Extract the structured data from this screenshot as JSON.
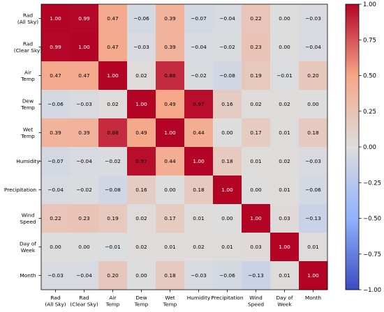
{
  "chart_data": {
    "type": "heatmap",
    "title": "",
    "xlabel": "",
    "ylabel": "",
    "colormap": "coolwarm",
    "vmin": -1.0,
    "vmax": 1.0,
    "variables": [
      [
        "Rad",
        "(All Sky)"
      ],
      [
        "Rad",
        "(Clear Sky)"
      ],
      [
        "Air",
        "Temp"
      ],
      [
        "Dew",
        "Temp"
      ],
      [
        "Wet",
        "Temp"
      ],
      [
        "Humidity"
      ],
      [
        "Precipitation"
      ],
      [
        "Wind",
        "Speed"
      ],
      [
        "Day of",
        "Week"
      ],
      [
        "Month"
      ]
    ],
    "matrix": [
      [
        1.0,
        0.99,
        0.47,
        -0.06,
        0.39,
        -0.07,
        -0.04,
        0.22,
        0.0,
        -0.03
      ],
      [
        0.99,
        1.0,
        0.47,
        -0.03,
        0.39,
        -0.04,
        -0.02,
        0.23,
        0.0,
        -0.04
      ],
      [
        0.47,
        0.47,
        1.0,
        0.02,
        0.88,
        -0.02,
        -0.08,
        0.19,
        -0.01,
        0.2
      ],
      [
        -0.06,
        -0.03,
        0.02,
        1.0,
        0.49,
        0.97,
        0.16,
        0.02,
        0.02,
        -0.0
      ],
      [
        0.39,
        0.39,
        0.88,
        0.49,
        1.0,
        0.44,
        0.0,
        0.17,
        0.01,
        0.18
      ],
      [
        -0.07,
        -0.04,
        -0.02,
        0.97,
        0.44,
        1.0,
        0.18,
        0.01,
        0.02,
        -0.03
      ],
      [
        -0.04,
        -0.02,
        -0.08,
        0.16,
        0.0,
        0.18,
        1.0,
        0.0,
        0.01,
        -0.06
      ],
      [
        0.22,
        0.23,
        0.19,
        0.02,
        0.17,
        0.01,
        0.0,
        1.0,
        0.03,
        -0.13
      ],
      [
        0.0,
        0.0,
        -0.01,
        0.02,
        0.01,
        0.02,
        0.01,
        0.03,
        1.0,
        0.01
      ],
      [
        -0.03,
        -0.04,
        0.2,
        -0.0,
        0.18,
        -0.03,
        -0.06,
        -0.13,
        0.01,
        1.0
      ]
    ],
    "colorbar_ticks": [
      "1.00",
      "0.75",
      "0.50",
      "0.25",
      "0.00",
      "−0.25",
      "−0.50",
      "−0.75",
      "−1.00"
    ],
    "legend": "colorbar right"
  }
}
